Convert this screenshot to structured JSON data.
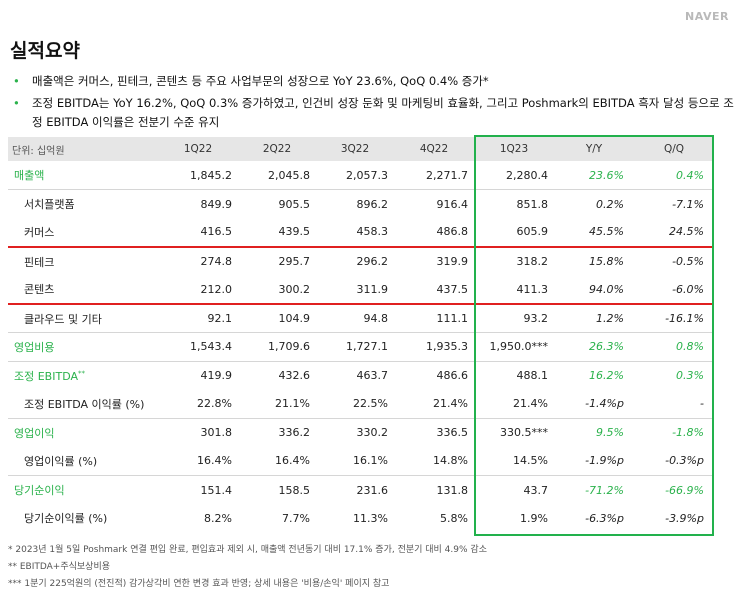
{
  "logo": "NAVER",
  "title": "실적요약",
  "bullets": [
    "매출액은 커머스, 핀테크, 콘텐츠 등 주요 사업부문의 성장으로 YoY 23.6%, QoQ 0.4% 증가*",
    "조정 EBITDA는 YoY 16.2%, QoQ 0.3% 증가하였고, 인건비 성장 둔화 및 마케팅비 효율화, 그리고 Poshmark의 EBITDA 흑자 달성 등으로 조정 EBITDA 이익률은 전분기 수준 유지"
  ],
  "table": {
    "unit": "단위: 십억원",
    "columns": [
      "1Q22",
      "2Q22",
      "3Q22",
      "4Q22",
      "1Q23",
      "Y/Y",
      "Q/Q"
    ],
    "rows": [
      {
        "label": "매출액",
        "values": [
          "1,845.2",
          "2,045.8",
          "2,057.3",
          "2,271.7",
          "2,280.4",
          "23.6%",
          "0.4%"
        ]
      },
      {
        "label": "서치플랫폼",
        "values": [
          "849.9",
          "905.5",
          "896.2",
          "916.4",
          "851.8",
          "0.2%",
          "-7.1%"
        ]
      },
      {
        "label": "커머스",
        "values": [
          "416.5",
          "439.5",
          "458.3",
          "486.8",
          "605.9",
          "45.5%",
          "24.5%"
        ]
      },
      {
        "label": "핀테크",
        "values": [
          "274.8",
          "295.7",
          "296.2",
          "319.9",
          "318.2",
          "15.8%",
          "-0.5%"
        ]
      },
      {
        "label": "콘텐츠",
        "values": [
          "212.0",
          "300.2",
          "311.9",
          "437.5",
          "411.3",
          "94.0%",
          "-6.0%"
        ]
      },
      {
        "label": "클라우드 및 기타",
        "values": [
          "92.1",
          "104.9",
          "94.8",
          "111.1",
          "93.2",
          "1.2%",
          "-16.1%"
        ]
      },
      {
        "label": "영업비용",
        "values": [
          "1,543.4",
          "1,709.6",
          "1,727.1",
          "1,935.3",
          "1,950.0***",
          "26.3%",
          "0.8%"
        ]
      },
      {
        "label": "조정 EBITDA",
        "sup": "**",
        "values": [
          "419.9",
          "432.6",
          "463.7",
          "486.6",
          "488.1",
          "16.2%",
          "0.3%"
        ]
      },
      {
        "label": "조정 EBITDA 이익률 (%)",
        "values": [
          "22.8%",
          "21.1%",
          "22.5%",
          "21.4%",
          "21.4%",
          "-1.4%p",
          "-"
        ]
      },
      {
        "label": "영업이익",
        "values": [
          "301.8",
          "336.2",
          "330.2",
          "336.5",
          "330.5***",
          "9.5%",
          "-1.8%"
        ]
      },
      {
        "label": "영업이익률 (%)",
        "values": [
          "16.4%",
          "16.4%",
          "16.1%",
          "14.8%",
          "14.5%",
          "-1.9%p",
          "-0.3%p"
        ]
      },
      {
        "label": "당기순이익",
        "values": [
          "151.4",
          "158.5",
          "231.6",
          "131.8",
          "43.7",
          "-71.2%",
          "-66.9%"
        ]
      },
      {
        "label": "당기순이익률 (%)",
        "values": [
          "8.2%",
          "7.7%",
          "11.3%",
          "5.8%",
          "1.9%",
          "-6.3%p",
          "-3.9%p"
        ]
      }
    ]
  },
  "footnotes": [
    "* 2023년 1월 5일 Poshmark 연결 편입 완료, 편입효과 제외 시, 매출액 전년동기 대비 17.1% 증가, 전분기 대비 4.9% 감소",
    "** EBITDA+주식보상비용",
    "*** 1분기 225억원의 (전진적) 감가상각비 연한 변경 효과 반영; 상세 내용은 '비용/손익' 페이지 참고"
  ],
  "colors": {
    "accent": "#2bb24c",
    "highlight_border": "#22b14c",
    "red_line": "#e02020",
    "header_bg": "#e6e6e6"
  }
}
